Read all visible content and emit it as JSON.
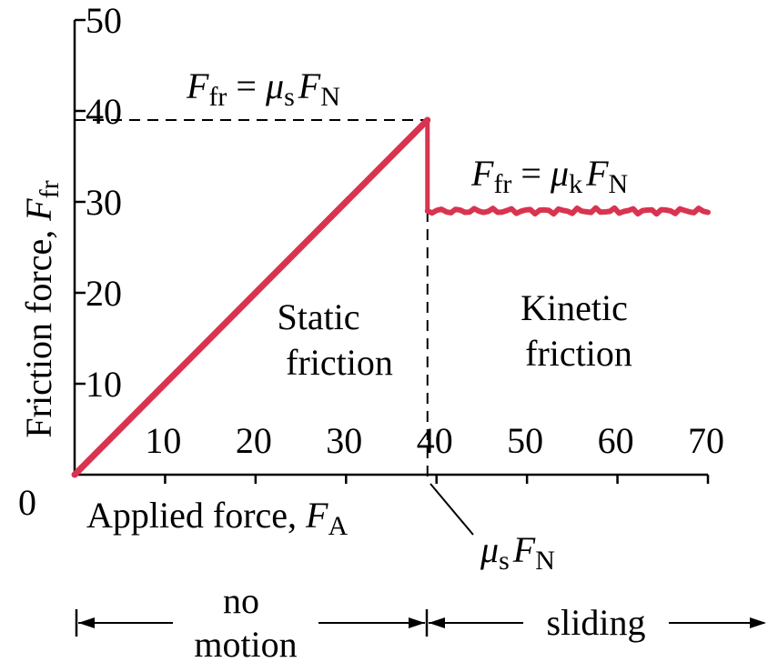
{
  "chart_data": {
    "type": "line",
    "title": "",
    "xlabel": {
      "text": "Applied force, ",
      "symbol": "F",
      "subscript": "A"
    },
    "ylabel": {
      "text": "Friction force, ",
      "symbol": "F",
      "subscript": "fr"
    },
    "origin_label": "0",
    "xlim": [
      0,
      70
    ],
    "ylim": [
      0,
      50
    ],
    "x_ticks": [
      10,
      20,
      30,
      40,
      50,
      60,
      70
    ],
    "y_ticks": [
      10,
      20,
      30,
      40,
      50
    ],
    "x_tick_labels": [
      "10",
      "20",
      "30",
      "40",
      "50",
      "60",
      "70"
    ],
    "y_tick_labels": [
      "10",
      "20",
      "30",
      "40",
      "50"
    ],
    "series": [
      {
        "color": "#d9344f",
        "static_points": [
          [
            0,
            0
          ],
          [
            39,
            39
          ]
        ],
        "drop_points": [
          [
            39,
            39
          ],
          [
            39,
            29
          ]
        ],
        "kinetic_points": [
          [
            39,
            29
          ],
          [
            70,
            29
          ]
        ]
      }
    ],
    "static_max": 39,
    "kinetic_level": 29,
    "annotations": {
      "static_eq": {
        "lhs_symbol": "F",
        "lhs_sub": "fr",
        "equals": " = ",
        "mu": "μ",
        "mu_sub": "s",
        "rhs_symbol": "F",
        "rhs_sub": "N"
      },
      "kinetic_eq": {
        "lhs_symbol": "F",
        "lhs_sub": "fr",
        "equals": " = ",
        "mu": "μ",
        "mu_sub": "k",
        "rhs_symbol": "F",
        "rhs_sub": "N"
      },
      "threshold": {
        "mu": "μ",
        "mu_sub": "s",
        "symbol": "F",
        "sub": "N"
      },
      "static_region": [
        "Static",
        "friction"
      ],
      "kinetic_region": [
        "Kinetic",
        "friction"
      ],
      "no_motion": [
        "no",
        "motion"
      ],
      "sliding": "sliding"
    }
  }
}
